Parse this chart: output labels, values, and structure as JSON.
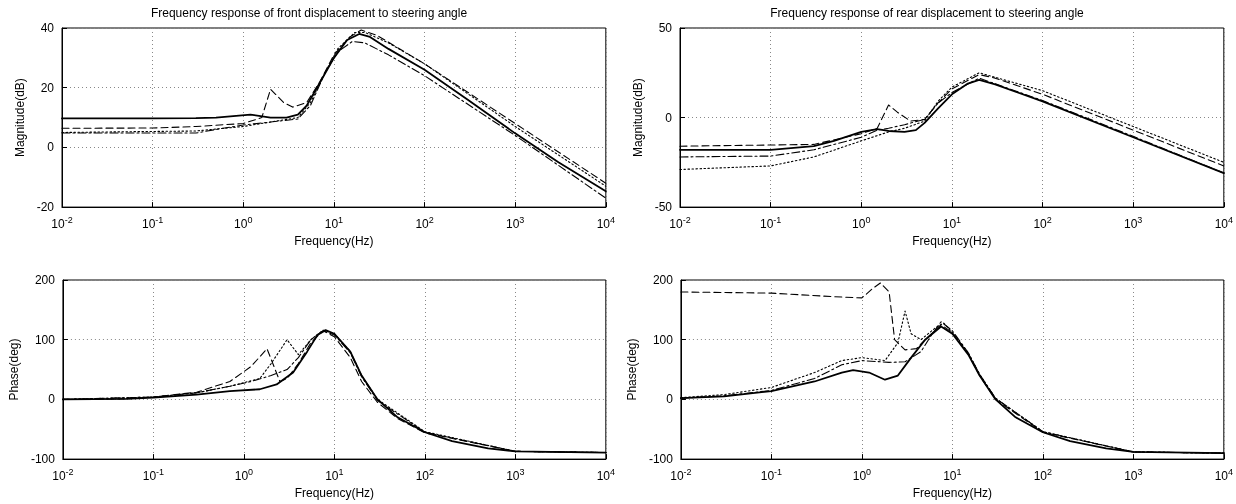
{
  "chart_data": [
    {
      "type": "line",
      "title": "Frequency response of front displacement to steering angle",
      "xlabel": "Frequency(Hz)",
      "ylabel": "Magnitude(dB)",
      "log": "x",
      "grid": true,
      "xlim": [
        0.01,
        10000
      ],
      "xticks": [
        {
          "value": 0.01,
          "label": "10$^{-2}$"
        },
        {
          "value": 0.1,
          "label": "10$^{-1}$"
        },
        {
          "value": 1,
          "label": "10$^{0}$"
        },
        {
          "value": 10,
          "label": "10$^{1}$"
        },
        {
          "value": 100,
          "label": "10$^{2}$"
        },
        {
          "value": 1000,
          "label": "10$^{3}$"
        },
        {
          "value": 10000,
          "label": "10$^{4}$"
        }
      ],
      "ylim": [
        -20,
        40
      ],
      "yticks": [
        -20,
        0,
        20,
        40
      ],
      "series": [
        {
          "color": "#000000",
          "line_style": "solid",
          "x": [
            0.01,
            0.1,
            0.3,
            0.5,
            1.2,
            2,
            3,
            4,
            5,
            6.5,
            10,
            14,
            19,
            25,
            40,
            100,
            300,
            1000,
            3000,
            10000
          ],
          "values": [
            9.7,
            9.7,
            9.8,
            10,
            11,
            10,
            10,
            11,
            14,
            20,
            30,
            36,
            38,
            37,
            33,
            26,
            16,
            4.7,
            -5,
            -14.7
          ]
        },
        {
          "color": "#000000",
          "line_style": "dashed",
          "x": [
            0.01,
            0.1,
            0.3,
            1,
            1.6,
            2,
            2.8,
            3.5,
            5,
            7,
            10,
            15,
            20,
            30,
            100,
            1000,
            10000
          ],
          "values": [
            6.4,
            6.5,
            7,
            8,
            10,
            19.5,
            15,
            13.5,
            15,
            22,
            31,
            37,
            39.3,
            37.5,
            28,
            8,
            -12
          ]
        },
        {
          "color": "#000000",
          "line_style": "dashdot",
          "x": [
            0.01,
            0.3,
            0.5,
            1,
            2,
            4,
            5.5,
            8,
            11,
            16,
            22,
            40,
            100,
            1000,
            10000
          ],
          "values": [
            4.8,
            4.8,
            6,
            7.5,
            8.5,
            9.5,
            14,
            25,
            32,
            35.5,
            35,
            31,
            24,
            4,
            -17
          ]
        },
        {
          "color": "#000000",
          "line_style": "dotted",
          "x": [
            0.01,
            0.3,
            1,
            2,
            4,
            5.5,
            8,
            11,
            17,
            22,
            40,
            100,
            1000,
            10000
          ],
          "values": [
            5,
            5.5,
            7,
            8.5,
            10,
            15,
            25,
            33,
            38.5,
            38.5,
            35,
            28,
            7,
            -13
          ]
        }
      ]
    },
    {
      "type": "line",
      "title": "Frequency response of rear displacement to steering angle",
      "xlabel": "Frequency(Hz)",
      "ylabel": "Magnitude(dB)",
      "log": "x",
      "grid": true,
      "xlim": [
        0.01,
        10000
      ],
      "xticks": [
        {
          "value": 0.01,
          "label": "10$^{-2}$"
        },
        {
          "value": 0.1,
          "label": "10$^{-1}$"
        },
        {
          "value": 1,
          "label": "10$^{0}$"
        },
        {
          "value": 10,
          "label": "10$^{1}$"
        },
        {
          "value": 100,
          "label": "10$^{2}$"
        },
        {
          "value": 1000,
          "label": "10$^{3}$"
        },
        {
          "value": 10000,
          "label": "10$^{4}$"
        }
      ],
      "ylim": [
        -50,
        50
      ],
      "yticks": [
        -50,
        0,
        50
      ],
      "series": [
        {
          "color": "#000000",
          "line_style": "solid",
          "x": [
            0.01,
            0.1,
            0.3,
            0.5,
            1,
            1.5,
            2,
            3,
            4,
            5,
            7,
            10,
            15,
            20,
            30,
            100,
            1000,
            10000
          ],
          "values": [
            -18,
            -18,
            -16,
            -13,
            -8,
            -6.5,
            -7.5,
            -8,
            -7,
            -3,
            5,
            13,
            19,
            21,
            18.5,
            9,
            -11,
            -31
          ]
        },
        {
          "color": "#000000",
          "line_style": "dashed",
          "x": [
            0.01,
            0.3,
            1,
            1.5,
            2,
            2.5,
            3.5,
            5,
            7,
            10,
            20,
            30,
            100,
            1000,
            10000
          ],
          "values": [
            -16,
            -15,
            -9,
            -6,
            7,
            3,
            -2,
            -1,
            8,
            16,
            24,
            22,
            13,
            -7,
            -27
          ]
        },
        {
          "color": "#000000",
          "line_style": "dashdot",
          "x": [
            0.01,
            0.1,
            0.3,
            1,
            1.5,
            2,
            3,
            5,
            7,
            10,
            20,
            100,
            1000,
            10000
          ],
          "values": [
            -22,
            -21.5,
            -18,
            -11,
            -7,
            -6,
            -4,
            -1,
            8,
            14,
            22,
            9.5,
            -10.5,
            -31
          ]
        },
        {
          "color": "#000000",
          "line_style": "dotted",
          "x": [
            0.01,
            0.1,
            0.3,
            1,
            2,
            3,
            5,
            7,
            10,
            20,
            100,
            1000,
            10000
          ],
          "values": [
            -29,
            -27,
            -22,
            -13,
            -8,
            -6,
            -2,
            9,
            17,
            25,
            15,
            -5,
            -25
          ]
        }
      ]
    },
    {
      "type": "line",
      "xlabel": "Frequency(Hz)",
      "ylabel": "Phase(deg)",
      "log": "x",
      "grid": true,
      "xlim": [
        0.01,
        10000
      ],
      "xticks": [
        {
          "value": 0.01,
          "label": "10$^{-2}$"
        },
        {
          "value": 0.1,
          "label": "10$^{-1}$"
        },
        {
          "value": 1,
          "label": "10$^{0}$"
        },
        {
          "value": 10,
          "label": "10$^{1}$"
        },
        {
          "value": 100,
          "label": "10$^{2}$"
        },
        {
          "value": 1000,
          "label": "10$^{3}$"
        },
        {
          "value": 10000,
          "label": "10$^{4}$"
        }
      ],
      "ylim": [
        -100,
        200
      ],
      "yticks": [
        -100,
        0,
        100,
        200
      ],
      "series": [
        {
          "color": "#000000",
          "line_style": "solid",
          "x": [
            0.01,
            0.05,
            0.1,
            0.3,
            0.7,
            1.5,
            2.3,
            3.5,
            5,
            6.5,
            8,
            10,
            15,
            20,
            30,
            50,
            100,
            200,
            500,
            1000,
            10000
          ],
          "values": [
            0,
            1,
            3,
            8,
            14,
            17,
            25,
            45,
            80,
            108,
            116,
            110,
            80,
            40,
            0,
            -30,
            -55,
            -70,
            -82,
            -87,
            -89
          ]
        },
        {
          "color": "#000000",
          "line_style": "dashed",
          "x": [
            0.01,
            0.05,
            0.1,
            0.3,
            0.7,
            1.2,
            1.8,
            2.5,
            3,
            4,
            5.5,
            7.5,
            10,
            15,
            20,
            30,
            50,
            100,
            1000,
            10000
          ],
          "values": [
            0,
            1,
            4,
            12,
            30,
            55,
            85,
            30,
            35,
            60,
            95,
            115,
            105,
            70,
            30,
            -5,
            -32,
            -56,
            -87,
            -89
          ]
        },
        {
          "color": "#000000",
          "line_style": "dashdot",
          "x": [
            0.01,
            0.1,
            0.3,
            0.7,
            1.2,
            2,
            3,
            4,
            5.5,
            7.5,
            10,
            15,
            20,
            30,
            100,
            1000,
            10000
          ],
          "values": [
            0,
            4,
            11,
            22,
            30,
            40,
            50,
            70,
            100,
            115,
            108,
            78,
            38,
            -2,
            -55,
            -87,
            -89
          ]
        },
        {
          "color": "#000000",
          "line_style": "dotted",
          "x": [
            0.01,
            0.1,
            0.3,
            0.7,
            1.5,
            2,
            3,
            4,
            5.5,
            7.5,
            10,
            15,
            20,
            30,
            100,
            1000,
            10000
          ],
          "values": [
            0,
            4,
            11,
            22,
            35,
            60,
            100,
            75,
            100,
            116,
            110,
            80,
            40,
            0,
            -54,
            -87,
            -89
          ]
        }
      ]
    },
    {
      "type": "line",
      "xlabel": "Frequency(Hz)",
      "ylabel": "Phase(deg)",
      "log": "x",
      "grid": true,
      "xlim": [
        0.01,
        10000
      ],
      "xticks": [
        {
          "value": 0.01,
          "label": "10$^{-2}$"
        },
        {
          "value": 0.1,
          "label": "10$^{-1}$"
        },
        {
          "value": 1,
          "label": "10$^{0}$"
        },
        {
          "value": 10,
          "label": "10$^{1}$"
        },
        {
          "value": 100,
          "label": "10$^{2}$"
        },
        {
          "value": 1000,
          "label": "10$^{3}$"
        },
        {
          "value": 10000,
          "label": "10$^{4}$"
        }
      ],
      "ylim": [
        -100,
        200
      ],
      "yticks": [
        -100,
        0,
        100,
        200
      ],
      "series": [
        {
          "color": "#000000",
          "line_style": "solid",
          "x": [
            0.01,
            0.03,
            0.1,
            0.3,
            0.6,
            0.8,
            1.2,
            1.8,
            2.5,
            3.5,
            5,
            7.5,
            10,
            15,
            20,
            30,
            50,
            100,
            200,
            500,
            1000,
            10000
          ],
          "values": [
            2,
            5,
            14,
            30,
            45,
            49,
            45,
            33,
            40,
            70,
            100,
            122,
            110,
            75,
            40,
            0,
            -30,
            -55,
            -70,
            -82,
            -88,
            -90
          ]
        },
        {
          "color": "#000000",
          "line_style": "dashed",
          "x": [
            0.01,
            0.1,
            0.5,
            1,
            1.3,
            1.6,
            2,
            2.3,
            3,
            4,
            5,
            7.5,
            10,
            15,
            20,
            30,
            100,
            1000,
            10000
          ],
          "values": [
            180,
            178,
            172,
            170,
            185,
            195,
            180,
            100,
            83,
            85,
            100,
            125,
            112,
            76,
            40,
            0,
            -55,
            -88,
            -90
          ]
        },
        {
          "color": "#000000",
          "line_style": "dashdot",
          "x": [
            0.01,
            0.03,
            0.1,
            0.3,
            0.6,
            1,
            2,
            3,
            4.5,
            6,
            7.5,
            10,
            15,
            20,
            30,
            100,
            1000,
            10000
          ],
          "values": [
            2,
            6,
            15,
            35,
            58,
            65,
            62,
            63,
            80,
            110,
            130,
            115,
            78,
            42,
            2,
            -54,
            -88,
            -90
          ]
        },
        {
          "color": "#000000",
          "line_style": "dotted",
          "x": [
            0.01,
            0.03,
            0.1,
            0.3,
            0.6,
            1,
            1.8,
            2.5,
            3,
            3.5,
            4.5,
            6.5,
            8,
            10,
            15,
            20,
            30,
            100,
            1000,
            10000
          ],
          "values": [
            3,
            8,
            20,
            45,
            65,
            70,
            65,
            95,
            148,
            110,
            100,
            120,
            128,
            112,
            78,
            42,
            2,
            -54,
            -88,
            -90
          ]
        }
      ]
    }
  ]
}
